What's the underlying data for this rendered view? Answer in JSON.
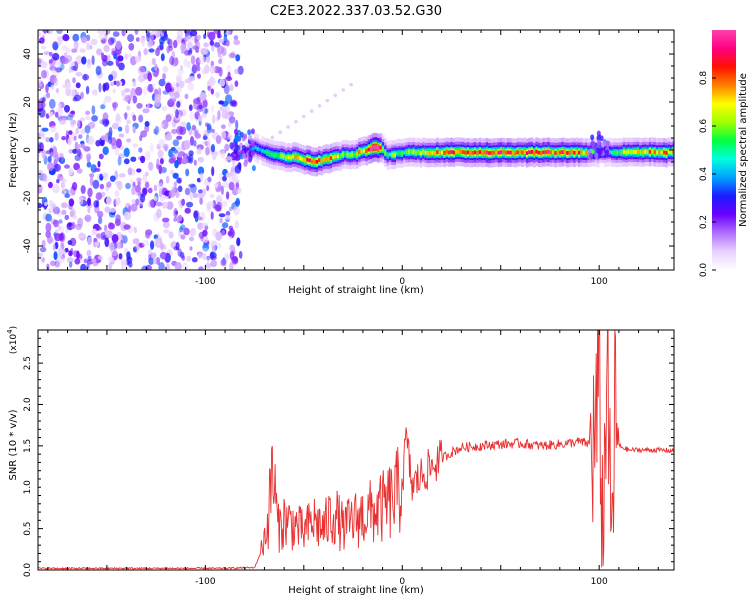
{
  "title": "C2E3.2022.337.03.52.G30",
  "chart_data": [
    {
      "type": "heatmap",
      "xlabel": "Height of straight line (km)",
      "ylabel": "Frequency (Hz)",
      "xlim": [
        -185,
        138
      ],
      "ylim": [
        -50,
        50
      ],
      "x_ticks": [
        -100,
        0,
        100
      ],
      "y_ticks": [
        -40,
        -20,
        0,
        20,
        40
      ],
      "colorbar": {
        "label": "Normalized spectral amplitude",
        "range": [
          0,
          1
        ],
        "ticks": [
          0.0,
          0.2,
          0.4,
          0.6,
          0.8
        ],
        "colormap": [
          "#ffffff",
          "#e8d0ff",
          "#b070ff",
          "#6a00ff",
          "#1b1bff",
          "#00a0ff",
          "#00ffe0",
          "#00ff40",
          "#a0ff00",
          "#ffff00",
          "#ff8000",
          "#ff1000",
          "#ff0080",
          "#ff40b0"
        ]
      },
      "noise_region_x": [
        -185,
        -82
      ],
      "noise_frequency_span_hz": [
        -50,
        50
      ],
      "ridge": {
        "x": [
          -80,
          -75,
          -70,
          -65,
          -60,
          -55,
          -50,
          -45,
          -40,
          -35,
          -30,
          -25,
          -22,
          -18,
          -15,
          -12,
          -10,
          -8,
          -5,
          0,
          5,
          10,
          20,
          30,
          40,
          50,
          60,
          70,
          80,
          90,
          95,
          100,
          105,
          110,
          120,
          130,
          138
        ],
        "frequency_hz": [
          -1,
          1,
          -1,
          -2,
          -3,
          -3,
          -4,
          -5,
          -4,
          -3,
          -2,
          -2,
          -1,
          0,
          1,
          1,
          0,
          -2,
          -2,
          -1,
          -1,
          -1,
          -1,
          -1,
          -1,
          -1,
          -1,
          -1,
          -1,
          -1,
          -1,
          -1,
          -1,
          -1,
          -1,
          -1,
          -1
        ],
        "peak_amplitude": [
          0.3,
          0.4,
          0.5,
          0.6,
          0.6,
          0.7,
          0.8,
          0.9,
          0.8,
          0.7,
          0.6,
          0.6,
          0.7,
          0.9,
          1.0,
          0.9,
          0.6,
          0.5,
          0.6,
          0.5,
          0.6,
          0.7,
          0.8,
          0.85,
          0.85,
          0.85,
          0.85,
          0.85,
          0.85,
          0.8,
          0.6,
          0.4,
          0.5,
          0.6,
          0.7,
          0.75,
          0.75
        ]
      }
    },
    {
      "type": "line",
      "xlabel": "Height of straight line (km)",
      "ylabel": "SNR (10 * v/v)",
      "y_multiplier": "(x10^4)",
      "xlim": [
        -185,
        138
      ],
      "ylim": [
        0,
        2.9
      ],
      "x_ticks": [
        -100,
        0,
        100
      ],
      "y_ticks": [
        0.0,
        0.5,
        1.0,
        1.5,
        2.0,
        2.5
      ],
      "series": [
        {
          "color": "#e83030",
          "x": [
            -185,
            -150,
            -110,
            -90,
            -75,
            -72,
            -68,
            -66,
            -63,
            -60,
            -55,
            -50,
            -45,
            -40,
            -35,
            -30,
            -25,
            -20,
            -15,
            -10,
            -5,
            -2,
            0,
            2,
            5,
            10,
            15,
            20,
            25,
            30,
            40,
            50,
            60,
            70,
            80,
            90,
            95,
            98,
            100,
            102,
            104,
            106,
            108,
            110,
            115,
            120,
            130,
            138
          ],
          "y": [
            0.02,
            0.02,
            0.02,
            0.02,
            0.03,
            0.2,
            0.6,
            1.25,
            0.5,
            0.6,
            0.55,
            0.45,
            0.6,
            0.5,
            0.7,
            0.5,
            0.6,
            0.65,
            0.7,
            0.75,
            0.85,
            0.95,
            1.05,
            1.6,
            1.0,
            1.15,
            1.25,
            1.35,
            1.42,
            1.48,
            1.5,
            1.52,
            1.53,
            1.5,
            1.52,
            1.55,
            1.52,
            1.55,
            2.3,
            0.2,
            2.9,
            0.1,
            1.9,
            1.5,
            1.45,
            1.45,
            1.45,
            1.44
          ]
        }
      ]
    }
  ]
}
